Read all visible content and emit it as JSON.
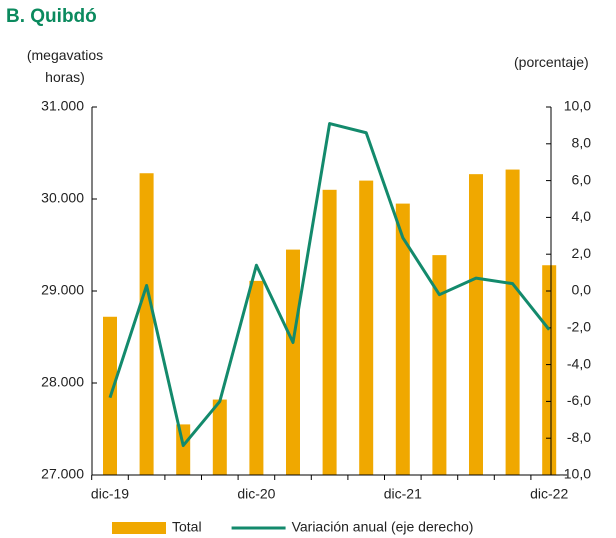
{
  "chart_data": {
    "type": "bar_line",
    "title": "B. Quibdó",
    "ylabel": "(megavatios horas)",
    "y2label": "(porcentaje)",
    "categories": [
      "dic-19",
      null,
      null,
      null,
      "dic-20",
      null,
      null,
      null,
      "dic-21",
      null,
      null,
      null,
      "dic-22"
    ],
    "series": [
      {
        "name": "Total",
        "type": "bar",
        "color": "#f0a800",
        "axis": "y",
        "values": [
          28720,
          30280,
          27550,
          27820,
          29110,
          29450,
          30100,
          30200,
          29950,
          29390,
          30270,
          30320,
          29280
        ]
      },
      {
        "name": "Variación anual (eje derecho)",
        "type": "line",
        "color": "#138a6c",
        "axis": "y2",
        "values": [
          -5.8,
          0.3,
          -8.4,
          -6.0,
          1.4,
          -2.8,
          9.1,
          8.6,
          2.9,
          -0.2,
          0.7,
          0.4,
          -2.1
        ]
      }
    ],
    "ylim": [
      27000,
      31000
    ],
    "yticks": [
      {
        "value": 27000,
        "label": "27.000"
      },
      {
        "value": 28000,
        "label": "28.000"
      },
      {
        "value": 29000,
        "label": "29.000"
      },
      {
        "value": 30000,
        "label": "30.000"
      },
      {
        "value": 31000,
        "label": "31.000"
      }
    ],
    "y2lim": [
      -10,
      10
    ],
    "y2ticks": [
      {
        "value": -10,
        "label": "-10,0"
      },
      {
        "value": -8,
        "label": "-8,0"
      },
      {
        "value": -6,
        "label": "-6,0"
      },
      {
        "value": -4,
        "label": "-4,0"
      },
      {
        "value": -2,
        "label": "-2,0"
      },
      {
        "value": 0,
        "label": "0,0"
      },
      {
        "value": 2,
        "label": "2,0"
      },
      {
        "value": 4,
        "label": "4,0"
      },
      {
        "value": 6,
        "label": "6,0"
      },
      {
        "value": 8,
        "label": "8,0"
      },
      {
        "value": 10,
        "label": "10,0"
      }
    ],
    "legend": "bottom"
  }
}
